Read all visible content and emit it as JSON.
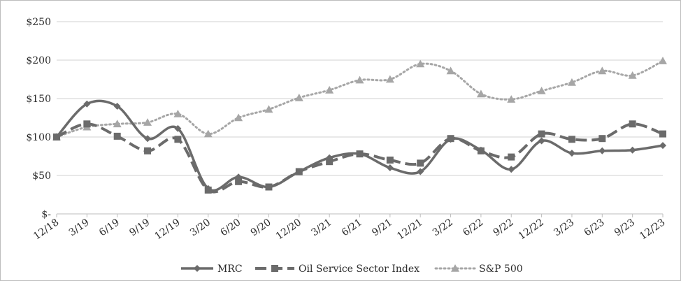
{
  "chart_data": {
    "type": "line",
    "title": "",
    "xlabel": "",
    "ylabel": "",
    "categories": [
      "12/18",
      "3/19",
      "6/19",
      "9/19",
      "12/19",
      "3/20",
      "6/20",
      "9/20",
      "12/20",
      "3/21",
      "6/21",
      "9/21",
      "12/21",
      "3/22",
      "6/22",
      "9/22",
      "12/22",
      "3/23",
      "6/23",
      "9/23",
      "12/23"
    ],
    "y_ticks": [
      0,
      50,
      100,
      150,
      200,
      250
    ],
    "y_tick_labels": [
      "$-",
      "$50",
      "$100",
      "$150",
      "$200",
      "$250"
    ],
    "ylim": [
      0,
      250
    ],
    "grid": "horizontal",
    "legend_position": "bottom",
    "series": [
      {
        "name": "MRC",
        "style": "solid",
        "marker": "diamond",
        "color": "#6b6b6b",
        "values": [
          100,
          143,
          140,
          98,
          111,
          33,
          48,
          35,
          55,
          73,
          78,
          60,
          55,
          97,
          83,
          58,
          95,
          79,
          82,
          83,
          89
        ]
      },
      {
        "name": "Oil Service Sector Index",
        "style": "dashed",
        "marker": "square",
        "color": "#6b6b6b",
        "values": [
          100,
          117,
          101,
          82,
          97,
          31,
          42,
          35,
          55,
          68,
          78,
          70,
          66,
          98,
          82,
          74,
          104,
          97,
          98,
          117,
          104
        ]
      },
      {
        "name": "S&P 500",
        "style": "dotted",
        "marker": "triangle",
        "color": "#a6a6a6",
        "values": [
          100,
          113,
          117,
          119,
          130,
          104,
          125,
          136,
          151,
          161,
          174,
          175,
          195,
          186,
          156,
          149,
          160,
          171,
          186,
          180,
          199
        ]
      }
    ]
  }
}
